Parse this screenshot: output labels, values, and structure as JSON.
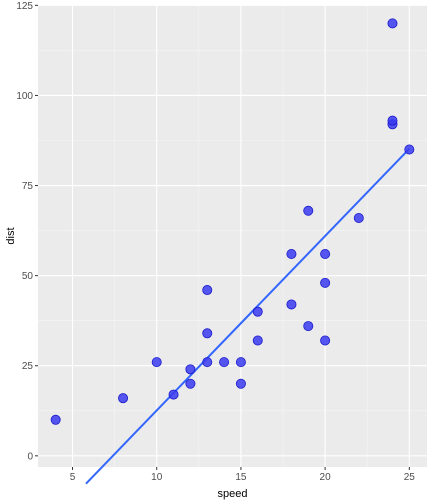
{
  "chart_data": {
    "type": "scatter",
    "xlabel": "speed",
    "ylabel": "dist",
    "xlim": [
      2.95,
      26.05
    ],
    "ylim": [
      -3.1,
      125.1
    ],
    "x_ticks": [
      5,
      10,
      15,
      20,
      25
    ],
    "y_ticks": [
      0,
      25,
      50,
      75,
      100,
      125
    ],
    "grid": true,
    "points": [
      {
        "x": 4,
        "y": 10
      },
      {
        "x": 8,
        "y": 16
      },
      {
        "x": 10,
        "y": 26
      },
      {
        "x": 11,
        "y": 17
      },
      {
        "x": 12,
        "y": 20
      },
      {
        "x": 12,
        "y": 24
      },
      {
        "x": 13,
        "y": 26
      },
      {
        "x": 13,
        "y": 34
      },
      {
        "x": 13,
        "y": 46
      },
      {
        "x": 14,
        "y": 26
      },
      {
        "x": 15,
        "y": 20
      },
      {
        "x": 15,
        "y": 26
      },
      {
        "x": 16,
        "y": 32
      },
      {
        "x": 16,
        "y": 40
      },
      {
        "x": 18,
        "y": 42
      },
      {
        "x": 18,
        "y": 56
      },
      {
        "x": 19,
        "y": 36
      },
      {
        "x": 19,
        "y": 68
      },
      {
        "x": 20,
        "y": 32
      },
      {
        "x": 20,
        "y": 48
      },
      {
        "x": 20,
        "y": 56
      },
      {
        "x": 22,
        "y": 66
      },
      {
        "x": 24,
        "y": 92
      },
      {
        "x": 24,
        "y": 93
      },
      {
        "x": 24,
        "y": 120
      },
      {
        "x": 25,
        "y": 85
      }
    ],
    "trend_line": {
      "slope": 4.84,
      "intercept": -35.8,
      "x_range": [
        5.8,
        25
      ]
    },
    "colors": {
      "panel": "#ebebeb",
      "grid_major": "#ffffff",
      "grid_minor": "#f5f5f5",
      "point_fill": "#3a3af0",
      "point_stroke": "#1c1ccc",
      "line": "#3366ff"
    }
  }
}
